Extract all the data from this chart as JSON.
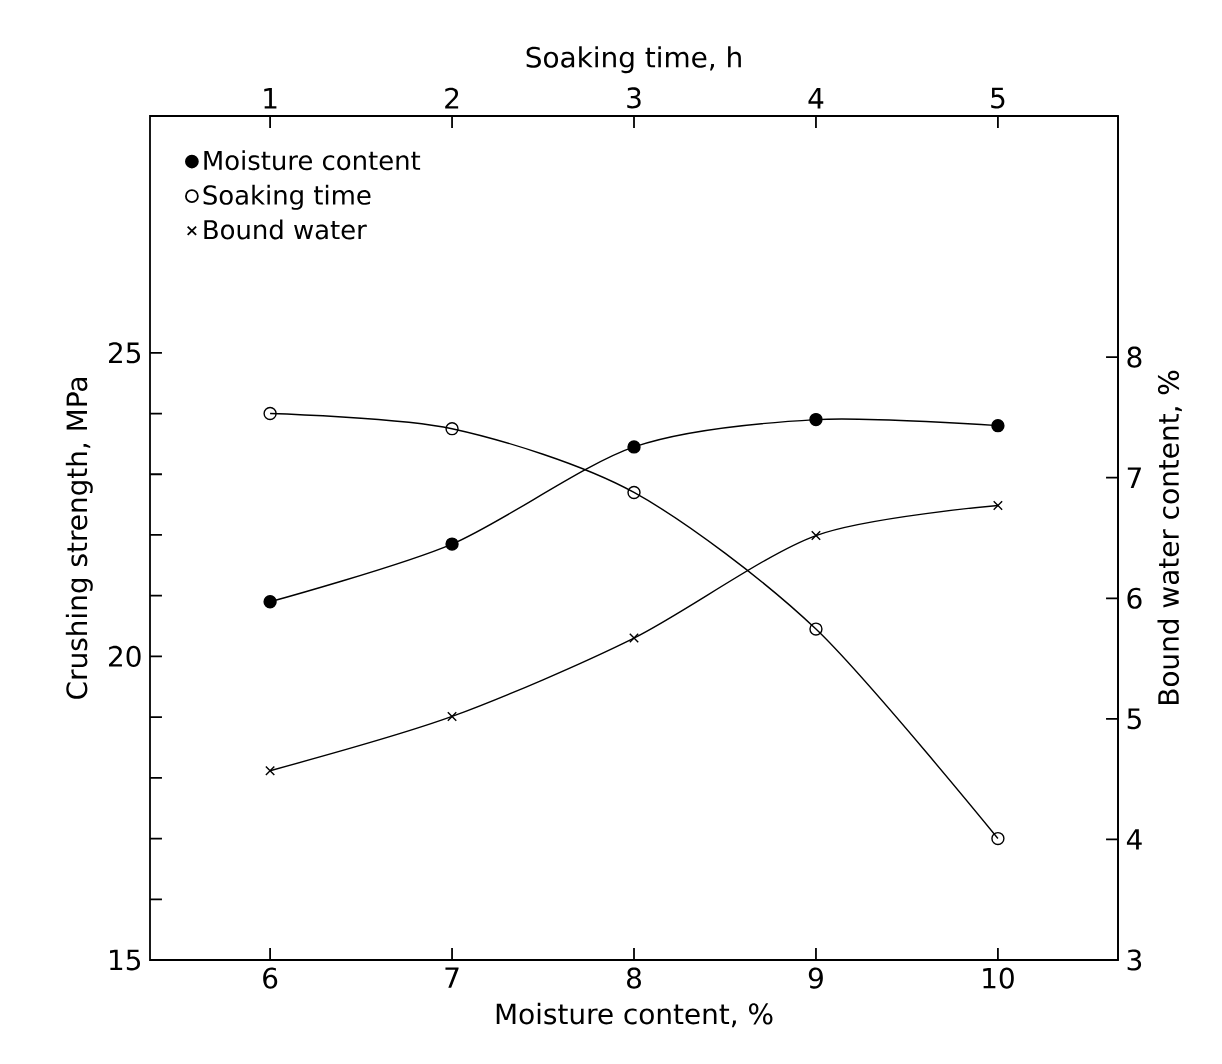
{
  "chart_data": {
    "type": "line",
    "xlabel": "Moisture content, %",
    "ylabel": "Crushing strength, MPa",
    "y2label": "Bound water content, %",
    "x2label": "Soaking time, h",
    "xlim": [
      5.34,
      10.66
    ],
    "xticks": [
      6,
      7,
      8,
      9,
      10
    ],
    "x2lim": [
      0.34,
      5.66
    ],
    "x2ticks": [
      1,
      2,
      3,
      4,
      5
    ],
    "ylim": [
      15,
      28.9
    ],
    "yticks": [
      15,
      {
        "value": 16,
        "label": null
      },
      {
        "value": 17,
        "label": null
      },
      {
        "value": 18,
        "label": null
      },
      {
        "value": 19,
        "label": null
      },
      20,
      {
        "value": 21,
        "label": null
      },
      {
        "value": 22,
        "label": null
      },
      {
        "value": 23,
        "label": null
      },
      {
        "value": 24,
        "label": null
      },
      25
    ],
    "y2lim": [
      3,
      10
    ],
    "y2ticks": [
      3,
      4,
      5,
      6,
      7,
      8
    ],
    "legend": "top left",
    "grid": false,
    "line_style": "solid",
    "series": [
      {
        "name": "Moisture content",
        "color": "#000000",
        "marker": "circle",
        "x": [
          6,
          7,
          8,
          9,
          10
        ],
        "values": [
          20.9,
          21.85,
          23.45,
          23.9,
          23.8
        ]
      },
      {
        "name": "Soaking time",
        "color": "#000000",
        "marker": "circle_open",
        "axis": "x2",
        "x": [
          1,
          2,
          3,
          4,
          5
        ],
        "values": [
          24.0,
          23.75,
          22.7,
          20.45,
          17.0
        ]
      },
      {
        "name": "Bound water",
        "color": "#000000",
        "marker": "cross",
        "axis": "y2",
        "x": [
          6,
          7,
          8,
          9,
          10
        ],
        "values": [
          4.57,
          5.02,
          5.67,
          6.52,
          6.77
        ]
      }
    ]
  }
}
